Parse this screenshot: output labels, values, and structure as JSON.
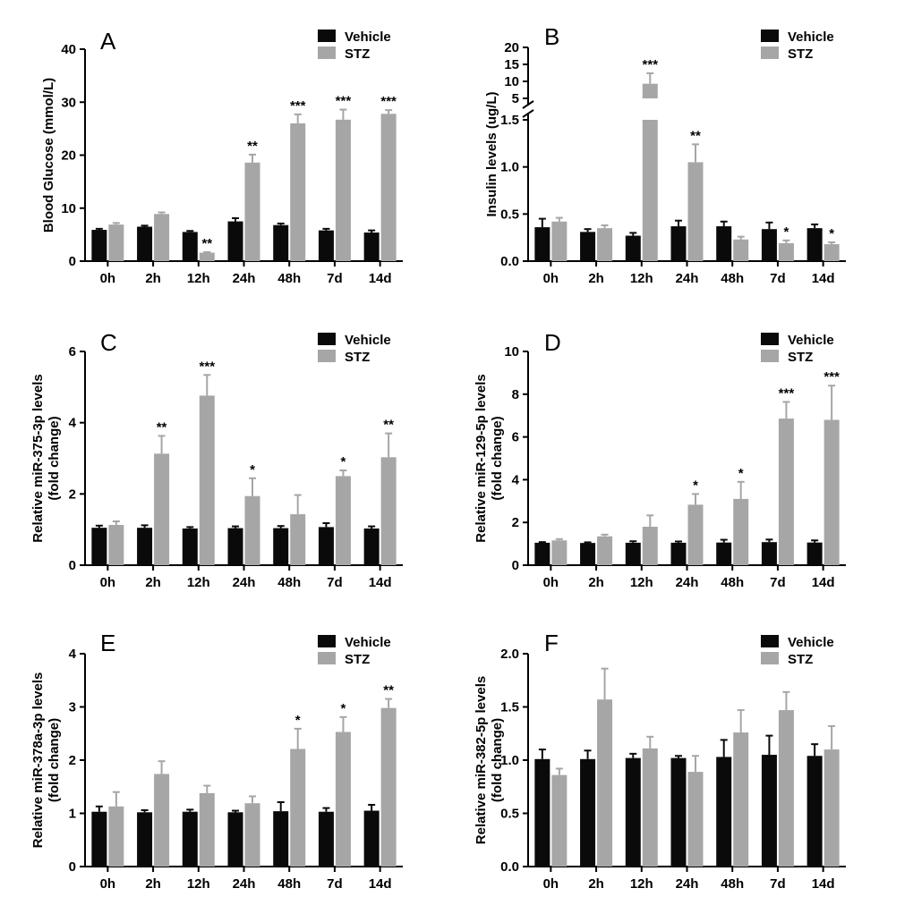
{
  "colors": {
    "vehicle": "#0a0a0a",
    "stz": "#a6a6a6",
    "axis": "#000000"
  },
  "legend": {
    "vehicle": "Vehicle",
    "stz": "STZ"
  },
  "chart_data": [
    {
      "type": "bar",
      "panel": "A",
      "ylabel": "Blood Glucose (mmol/L)",
      "ylim": [
        0,
        40
      ],
      "yticks": [
        0,
        10,
        20,
        30,
        40
      ],
      "categories": [
        "0h",
        "2h",
        "12h",
        "24h",
        "48h",
        "7d",
        "14d"
      ],
      "series": [
        {
          "name": "Vehicle",
          "values": [
            5.9,
            6.5,
            5.5,
            7.5,
            6.8,
            5.8,
            5.4
          ],
          "errors": [
            0.2,
            0.2,
            0.2,
            0.6,
            0.3,
            0.3,
            0.4
          ],
          "sig": [
            "",
            "",
            "",
            "",
            "",
            "",
            ""
          ]
        },
        {
          "name": "STZ",
          "values": [
            6.9,
            8.9,
            1.6,
            18.6,
            26.0,
            26.7,
            27.8
          ],
          "errors": [
            0.3,
            0.3,
            0.1,
            1.5,
            1.7,
            1.9,
            0.7
          ],
          "sig": [
            "",
            "",
            "**",
            "**",
            "***",
            "***",
            "***"
          ]
        }
      ]
    },
    {
      "type": "bar",
      "panel": "B",
      "ylabel": "Insulin levels (ug/L)",
      "broken_axis": true,
      "ylim_lower": [
        0,
        1.5
      ],
      "yticks_lower": [
        0.0,
        0.5,
        1.0,
        1.5
      ],
      "yticks_lower_labels": [
        "0.0",
        "0.5",
        "1.0",
        "1.5"
      ],
      "ylim_upper": [
        5,
        20
      ],
      "yticks_upper": [
        5,
        10,
        15,
        20
      ],
      "categories": [
        "0h",
        "2h",
        "12h",
        "24h",
        "48h",
        "7d",
        "14d"
      ],
      "series": [
        {
          "name": "Vehicle",
          "values": [
            0.36,
            0.31,
            0.27,
            0.37,
            0.37,
            0.34,
            0.35
          ],
          "errors": [
            0.09,
            0.03,
            0.03,
            0.06,
            0.05,
            0.07,
            0.04
          ],
          "sig": [
            "",
            "",
            "",
            "",
            "",
            "",
            ""
          ]
        },
        {
          "name": "STZ",
          "values": [
            0.42,
            0.35,
            9.3,
            1.05,
            0.23,
            0.19,
            0.18
          ],
          "errors": [
            0.04,
            0.03,
            3.1,
            0.19,
            0.03,
            0.03,
            0.02
          ],
          "sig": [
            "",
            "",
            "***",
            "**",
            "",
            "*",
            "*"
          ]
        }
      ]
    },
    {
      "type": "bar",
      "panel": "C",
      "ylabel": "Relative miR-375-3p levels",
      "ylabel2": "(fold change)",
      "ylim": [
        0,
        6
      ],
      "yticks": [
        0,
        2,
        4,
        6
      ],
      "categories": [
        "0h",
        "2h",
        "12h",
        "24h",
        "48h",
        "7d",
        "14d"
      ],
      "series": [
        {
          "name": "Vehicle",
          "values": [
            1.05,
            1.05,
            1.03,
            1.04,
            1.04,
            1.07,
            1.03
          ],
          "errors": [
            0.06,
            0.07,
            0.04,
            0.05,
            0.06,
            0.11,
            0.06
          ],
          "sig": [
            "",
            "",
            "",
            "",
            "",
            "",
            ""
          ]
        },
        {
          "name": "STZ",
          "values": [
            1.13,
            3.13,
            4.76,
            1.94,
            1.43,
            2.5,
            3.03
          ],
          "errors": [
            0.1,
            0.5,
            0.58,
            0.5,
            0.54,
            0.16,
            0.67
          ],
          "sig": [
            "",
            "**",
            "***",
            "*",
            "",
            "*",
            "**"
          ]
        }
      ]
    },
    {
      "type": "bar",
      "panel": "D",
      "ylabel": "Relative miR-129-5p levels",
      "ylabel2": "(fold change)",
      "ylim": [
        0,
        10
      ],
      "yticks": [
        0,
        2,
        4,
        6,
        8,
        10
      ],
      "categories": [
        "0h",
        "2h",
        "12h",
        "24h",
        "48h",
        "7d",
        "14d"
      ],
      "series": [
        {
          "name": "Vehicle",
          "values": [
            1.05,
            1.04,
            1.05,
            1.05,
            1.06,
            1.08,
            1.06
          ],
          "errors": [
            0.03,
            0.03,
            0.07,
            0.06,
            0.13,
            0.12,
            0.1
          ],
          "sig": [
            "",
            "",
            "",
            "",
            "",
            "",
            ""
          ]
        },
        {
          "name": "STZ",
          "values": [
            1.16,
            1.35,
            1.8,
            2.83,
            3.1,
            6.86,
            6.8
          ],
          "errors": [
            0.06,
            0.08,
            0.53,
            0.5,
            0.8,
            0.78,
            1.6
          ],
          "sig": [
            "",
            "",
            "",
            "*",
            "*",
            "***",
            "***"
          ]
        }
      ]
    },
    {
      "type": "bar",
      "panel": "E",
      "ylabel": "Relative miR-378a-3p levels",
      "ylabel2": "(fold change)",
      "ylim": [
        0,
        4
      ],
      "yticks": [
        0,
        1,
        2,
        3,
        4
      ],
      "categories": [
        "0h",
        "2h",
        "12h",
        "24h",
        "48h",
        "7d",
        "14d"
      ],
      "series": [
        {
          "name": "Vehicle",
          "values": [
            1.03,
            1.02,
            1.03,
            1.02,
            1.04,
            1.03,
            1.05
          ],
          "errors": [
            0.1,
            0.04,
            0.04,
            0.03,
            0.17,
            0.07,
            0.11
          ],
          "sig": [
            "",
            "",
            "",
            "",
            "",
            "",
            ""
          ]
        },
        {
          "name": "STZ",
          "values": [
            1.13,
            1.74,
            1.38,
            1.19,
            2.21,
            2.53,
            2.98
          ],
          "errors": [
            0.27,
            0.24,
            0.14,
            0.13,
            0.38,
            0.28,
            0.17
          ],
          "sig": [
            "",
            "",
            "",
            "",
            "*",
            "*",
            "**"
          ]
        }
      ]
    },
    {
      "type": "bar",
      "panel": "F",
      "ylabel": "Relative miR-382-5p levels",
      "ylabel2": "(fold change)",
      "ylim": [
        0,
        2
      ],
      "yticks": [
        0,
        0.5,
        1.0,
        1.5,
        2.0
      ],
      "yticks_labels": [
        "0.0",
        "0.5",
        "1.0",
        "1.5",
        "2.0"
      ],
      "categories": [
        "0h",
        "2h",
        "12h",
        "24h",
        "48h",
        "7d",
        "14d"
      ],
      "series": [
        {
          "name": "Vehicle",
          "values": [
            1.01,
            1.01,
            1.02,
            1.02,
            1.03,
            1.05,
            1.04
          ],
          "errors": [
            0.09,
            0.08,
            0.04,
            0.02,
            0.16,
            0.18,
            0.11
          ],
          "sig": [
            "",
            "",
            "",
            "",
            "",
            "",
            ""
          ]
        },
        {
          "name": "STZ",
          "values": [
            0.86,
            1.57,
            1.11,
            0.89,
            1.26,
            1.47,
            1.1
          ],
          "errors": [
            0.06,
            0.29,
            0.11,
            0.15,
            0.21,
            0.17,
            0.22
          ],
          "sig": [
            "",
            "",
            "",
            "",
            "",
            "",
            ""
          ]
        }
      ]
    }
  ]
}
